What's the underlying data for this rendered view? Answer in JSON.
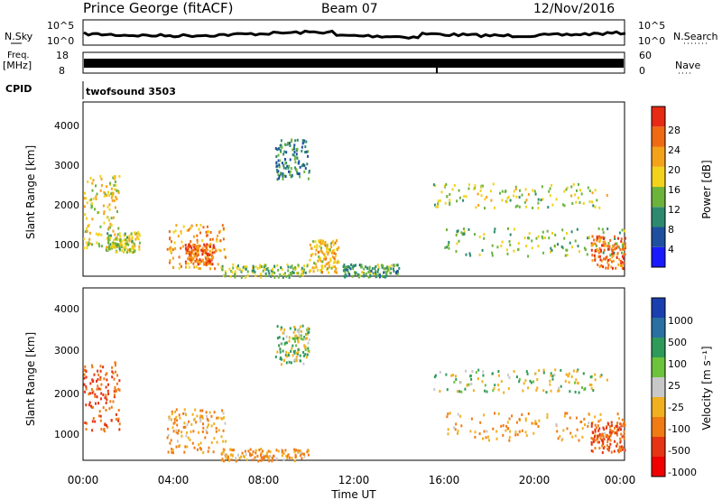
{
  "header": {
    "station": "Prince George (fitACF)",
    "beam": "Beam 07",
    "date": "12/Nov/2016"
  },
  "top_panels": {
    "nsky_label": "N.Sky",
    "nsky_ticks": [
      "10^5",
      "10^0"
    ],
    "nsearch_label": "N.Search",
    "nsearch_ticks": [
      "10^5",
      "10^0"
    ],
    "freq_label_1": "Freq.",
    "freq_label_2": "[MHz]",
    "freq_ticks": [
      "18",
      "8"
    ],
    "nave_label": "Nave",
    "nave_ticks": [
      "60",
      "0"
    ],
    "cpid_label": "CPID",
    "cpid_value": "twofsound 3503"
  },
  "axes": {
    "ylabel": "Slant Range [km]",
    "xlabel": "Time UT",
    "yticks": [
      "1000",
      "2000",
      "3000",
      "4000"
    ],
    "xticks": [
      "00:00",
      "04:00",
      "08:00",
      "12:00",
      "16:00",
      "20:00",
      "00:00"
    ]
  },
  "power_scale": {
    "label": "Power [dB]",
    "ticks": [
      "4",
      "8",
      "12",
      "16",
      "20",
      "24",
      "28"
    ],
    "colors": [
      "#1a1aff",
      "#1f4f9f",
      "#2e8a6e",
      "#6cb33c",
      "#f2d21b",
      "#f4a21a",
      "#f06a14",
      "#e62a14"
    ]
  },
  "velocity_scale": {
    "label": "Velocity [m s⁻¹]",
    "ticks": [
      "1000",
      "500",
      "100",
      "25",
      "-25",
      "-100",
      "-500",
      "-1000"
    ],
    "colors": [
      "#1a3fb0",
      "#2a70a0",
      "#2e9a5a",
      "#6cc33c",
      "#c8c8c8",
      "#f0b020",
      "#f07a14",
      "#e63414",
      "#f00000"
    ]
  },
  "chart_data": [
    {
      "type": "heatmap",
      "title": "Power",
      "xlabel": "Time UT",
      "ylabel": "Slant Range [km]",
      "xlim": [
        0,
        24
      ],
      "ylim": [
        180,
        4500
      ],
      "colorbar_label": "Power [dB]",
      "colorbar_range": [
        0,
        32
      ],
      "regions": [
        {
          "t": [
            0.0,
            1.6
          ],
          "r": [
            900,
            2700
          ],
          "value": 18
        },
        {
          "t": [
            1.0,
            2.5
          ],
          "r": [
            800,
            1300
          ],
          "value": 16
        },
        {
          "t": [
            3.7,
            6.3
          ],
          "r": [
            400,
            1500
          ],
          "value": 22
        },
        {
          "t": [
            4.5,
            5.8
          ],
          "r": [
            500,
            1000
          ],
          "value": 26
        },
        {
          "t": [
            6.0,
            10.0
          ],
          "r": [
            180,
            500
          ],
          "value": 14
        },
        {
          "t": [
            8.5,
            10.0
          ],
          "r": [
            2600,
            3600
          ],
          "value": 10
        },
        {
          "t": [
            10.0,
            11.3
          ],
          "r": [
            300,
            1100
          ],
          "value": 20
        },
        {
          "t": [
            11.5,
            14.0
          ],
          "r": [
            180,
            500
          ],
          "value": 12
        },
        {
          "t": [
            15.5,
            23.2
          ],
          "r": [
            1900,
            2500
          ],
          "value": 16
        },
        {
          "t": [
            16.0,
            24.0
          ],
          "r": [
            700,
            1400
          ],
          "value": 14
        },
        {
          "t": [
            22.5,
            24.0
          ],
          "r": [
            400,
            1200
          ],
          "value": 26
        }
      ]
    },
    {
      "type": "heatmap",
      "title": "Velocity",
      "xlabel": "Time UT",
      "ylabel": "Slant Range [km]",
      "xlim": [
        0,
        24
      ],
      "ylim": [
        180,
        4500
      ],
      "colorbar_label": "Velocity [m s⁻¹]",
      "colorbar_range": [
        -1000,
        1000
      ],
      "regions": [
        {
          "t": [
            0.0,
            1.6
          ],
          "r": [
            900,
            2700
          ],
          "value": -500
        },
        {
          "t": [
            3.7,
            6.3
          ],
          "r": [
            400,
            1500
          ],
          "value": -100
        },
        {
          "t": [
            6.0,
            10.0
          ],
          "r": [
            180,
            500
          ],
          "value": -100
        },
        {
          "t": [
            8.5,
            10.0
          ],
          "r": [
            2600,
            3600
          ],
          "value": 0
        },
        {
          "t": [
            15.5,
            23.2
          ],
          "r": [
            1900,
            2500
          ],
          "value": 0
        },
        {
          "t": [
            16.0,
            24.0
          ],
          "r": [
            700,
            1400
          ],
          "value": -100
        },
        {
          "t": [
            22.5,
            24.0
          ],
          "r": [
            400,
            1200
          ],
          "value": -500
        }
      ]
    }
  ]
}
